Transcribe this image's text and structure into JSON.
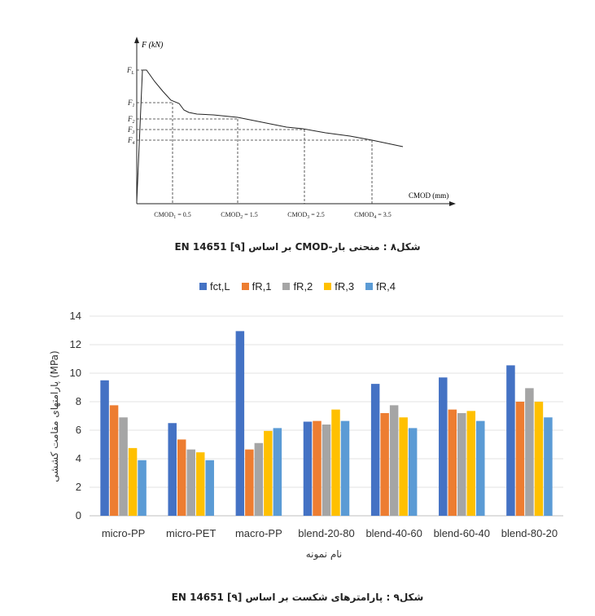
{
  "caption_fig8": "شکل۸ : منحنی بار-CMOD بر اساس EN 14651 [۹]",
  "caption_fig9": "شکل۹ : پارامترهای شکست بر اساس EN 14651 [۹]",
  "chart_data": [
    {
      "type": "line",
      "title": "",
      "xlabel": "CMOD (mm)",
      "ylabel": "F (kN)",
      "y_markers": [
        "FL",
        "F1",
        "F2",
        "F3",
        "F4"
      ],
      "x_markers": [
        {
          "label": "CMOD1 = 0.5",
          "sub": "1",
          "value": 0.5
        },
        {
          "label": "CMOD2 = 1.5",
          "sub": "2",
          "value": 1.5
        },
        {
          "label": "CMOD3 = 2.5",
          "sub": "3",
          "value": 2.5
        },
        {
          "label": "CMOD4 = 3.5",
          "sub": "4",
          "value": 3.5
        }
      ],
      "ticks_shown": false
    },
    {
      "type": "bar",
      "title": "",
      "xlabel": "نام نمونه",
      "ylabel": "پارامتهای مقامت کششی (MPa)",
      "ylim": [
        0,
        14
      ],
      "yticks": [
        0,
        2,
        4,
        6,
        8,
        10,
        12,
        14
      ],
      "grid": true,
      "legend_position": "top",
      "categories": [
        "micro-PP",
        "micro-PET",
        "macro-PP",
        "blend-20-80",
        "blend-40-60",
        "blend-60-40",
        "blend-80-20"
      ],
      "series": [
        {
          "name": "fct,L",
          "color": "#4472C4",
          "values": [
            9.5,
            6.5,
            12.95,
            6.6,
            9.25,
            9.7,
            10.55
          ]
        },
        {
          "name": "fR,1",
          "color": "#ED7D31",
          "values": [
            7.75,
            5.35,
            4.65,
            6.65,
            7.2,
            7.45,
            8.0
          ]
        },
        {
          "name": "fR,2",
          "color": "#A5A5A5",
          "values": [
            6.9,
            4.65,
            5.1,
            6.4,
            7.75,
            7.2,
            8.95
          ]
        },
        {
          "name": "fR,3",
          "color": "#FFC000",
          "values": [
            4.75,
            4.45,
            5.95,
            7.45,
            6.9,
            7.35,
            8.0
          ]
        },
        {
          "name": "fR,4",
          "color": "#5B9BD5",
          "values": [
            3.9,
            3.9,
            6.15,
            6.65,
            6.15,
            6.65,
            6.9
          ]
        }
      ]
    }
  ]
}
